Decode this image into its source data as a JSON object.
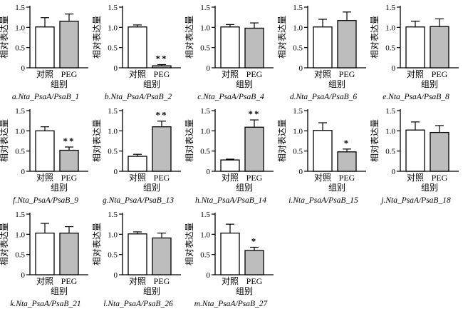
{
  "figure": {
    "ylabel": "相对表达量",
    "xlabel": "组别",
    "categories": [
      "对照",
      "PEG"
    ],
    "yticks": [
      "0",
      "0.5",
      "1.0",
      "1.5"
    ],
    "ylim": [
      0,
      1.5
    ],
    "colors": {
      "control_fill": "#ffffff",
      "peg_fill": "#bdbdbd",
      "stroke": "#000000"
    }
  },
  "chart_data": [
    {
      "id": "a",
      "caption": "a.Nta_PsaA/PsaB_1",
      "type": "bar",
      "categories": [
        "对照",
        "PEG"
      ],
      "control": {
        "value": 1.01,
        "err": 0.23
      },
      "peg": {
        "value": 1.15,
        "err": 0.18
      },
      "sig": ""
    },
    {
      "id": "b",
      "caption": "b.Nta_PsaA/PsaB_2",
      "type": "bar",
      "categories": [
        "对照",
        "PEG"
      ],
      "control": {
        "value": 1.01,
        "err": 0.05
      },
      "peg": {
        "value": 0.05,
        "err": 0.03
      },
      "sig": "**"
    },
    {
      "id": "c",
      "caption": "c.Nta_PsaA/PsaB_4",
      "type": "bar",
      "categories": [
        "对照",
        "PEG"
      ],
      "control": {
        "value": 1.01,
        "err": 0.06
      },
      "peg": {
        "value": 0.98,
        "err": 0.13
      },
      "sig": ""
    },
    {
      "id": "d",
      "caption": "d.Nta_PsaA/PsaB_6",
      "type": "bar",
      "categories": [
        "对照",
        "PEG"
      ],
      "control": {
        "value": 1.01,
        "err": 0.19
      },
      "peg": {
        "value": 1.17,
        "err": 0.21
      },
      "sig": ""
    },
    {
      "id": "e",
      "caption": "e.Nta_PsaA/PsaB_8",
      "type": "bar",
      "categories": [
        "对照",
        "PEG"
      ],
      "control": {
        "value": 1.01,
        "err": 0.14
      },
      "peg": {
        "value": 1.02,
        "err": 0.19
      },
      "sig": ""
    },
    {
      "id": "f",
      "caption": "f.Nta_PsaA/PsaB_9",
      "type": "bar",
      "categories": [
        "对照",
        "PEG"
      ],
      "control": {
        "value": 1.0,
        "err": 0.1
      },
      "peg": {
        "value": 0.52,
        "err": 0.08
      },
      "sig": "**"
    },
    {
      "id": "g",
      "caption": "g.Nta_PsaA/PsaB_13",
      "type": "bar",
      "categories": [
        "对照",
        "PEG"
      ],
      "control": {
        "value": 0.37,
        "err": 0.05
      },
      "peg": {
        "value": 1.1,
        "err": 0.14
      },
      "sig": "**"
    },
    {
      "id": "h",
      "caption": "h.Nta_PsaA/PsaB_14",
      "type": "bar",
      "categories": [
        "对照",
        "PEG"
      ],
      "control": {
        "value": 0.28,
        "err": 0.02
      },
      "peg": {
        "value": 1.09,
        "err": 0.18
      },
      "sig": "**"
    },
    {
      "id": "i",
      "caption": "i.Nta_PsaA/PsaB_15",
      "type": "bar",
      "categories": [
        "对照",
        "PEG"
      ],
      "control": {
        "value": 1.01,
        "err": 0.19
      },
      "peg": {
        "value": 0.48,
        "err": 0.07
      },
      "sig": "*"
    },
    {
      "id": "j",
      "caption": "j.Nta_PsaA/PsaB_18",
      "type": "bar",
      "categories": [
        "对照",
        "PEG"
      ],
      "control": {
        "value": 1.02,
        "err": 0.2
      },
      "peg": {
        "value": 0.96,
        "err": 0.17
      },
      "sig": ""
    },
    {
      "id": "k",
      "caption": "k.Nta_PsaA/PsaB_21",
      "type": "bar",
      "categories": [
        "对照",
        "PEG"
      ],
      "control": {
        "value": 1.03,
        "err": 0.24
      },
      "peg": {
        "value": 1.03,
        "err": 0.16
      },
      "sig": ""
    },
    {
      "id": "l",
      "caption": "l.Nta_PsaA/PsaB_26",
      "type": "bar",
      "categories": [
        "对照",
        "PEG"
      ],
      "control": {
        "value": 1.01,
        "err": 0.05
      },
      "peg": {
        "value": 0.91,
        "err": 0.12
      },
      "sig": ""
    },
    {
      "id": "m",
      "caption": "m.Nta_PsaA/PsaB_27",
      "type": "bar",
      "categories": [
        "对照",
        "PEG"
      ],
      "control": {
        "value": 1.03,
        "err": 0.22
      },
      "peg": {
        "value": 0.6,
        "err": 0.08
      },
      "sig": "*"
    }
  ]
}
